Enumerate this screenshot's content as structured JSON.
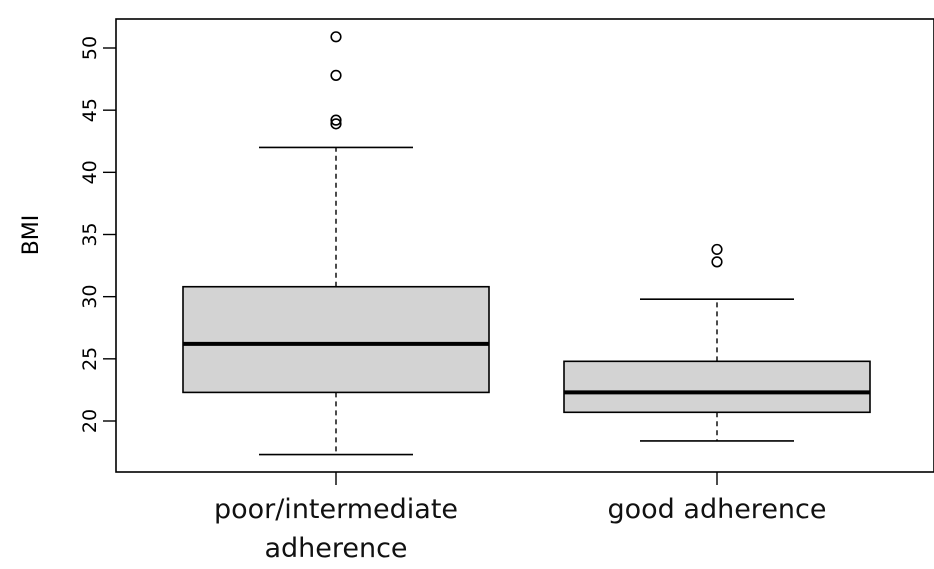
{
  "chart_data": {
    "type": "box",
    "title": "",
    "xlabel": "",
    "ylabel": "BMI",
    "ylim": [
      15,
      52
    ],
    "yticks": [
      20,
      25,
      30,
      35,
      40,
      45,
      50
    ],
    "categories": [
      {
        "label_lines": [
          "poor/intermediate",
          "adherence"
        ]
      },
      {
        "label_lines": [
          "good adherence"
        ]
      }
    ],
    "boxes": [
      {
        "whisker_low": 17.3,
        "q1": 22.3,
        "median": 26.2,
        "q3": 30.8,
        "whisker_high": 42.0,
        "outliers": [
          43.9,
          44.2,
          47.8,
          50.9
        ]
      },
      {
        "whisker_low": 18.4,
        "q1": 20.7,
        "median": 22.3,
        "q3": 24.8,
        "whisker_high": 29.8,
        "outliers": [
          32.8,
          33.8
        ]
      }
    ],
    "box_fill": "#d3d3d3",
    "line_color": "#000000"
  }
}
